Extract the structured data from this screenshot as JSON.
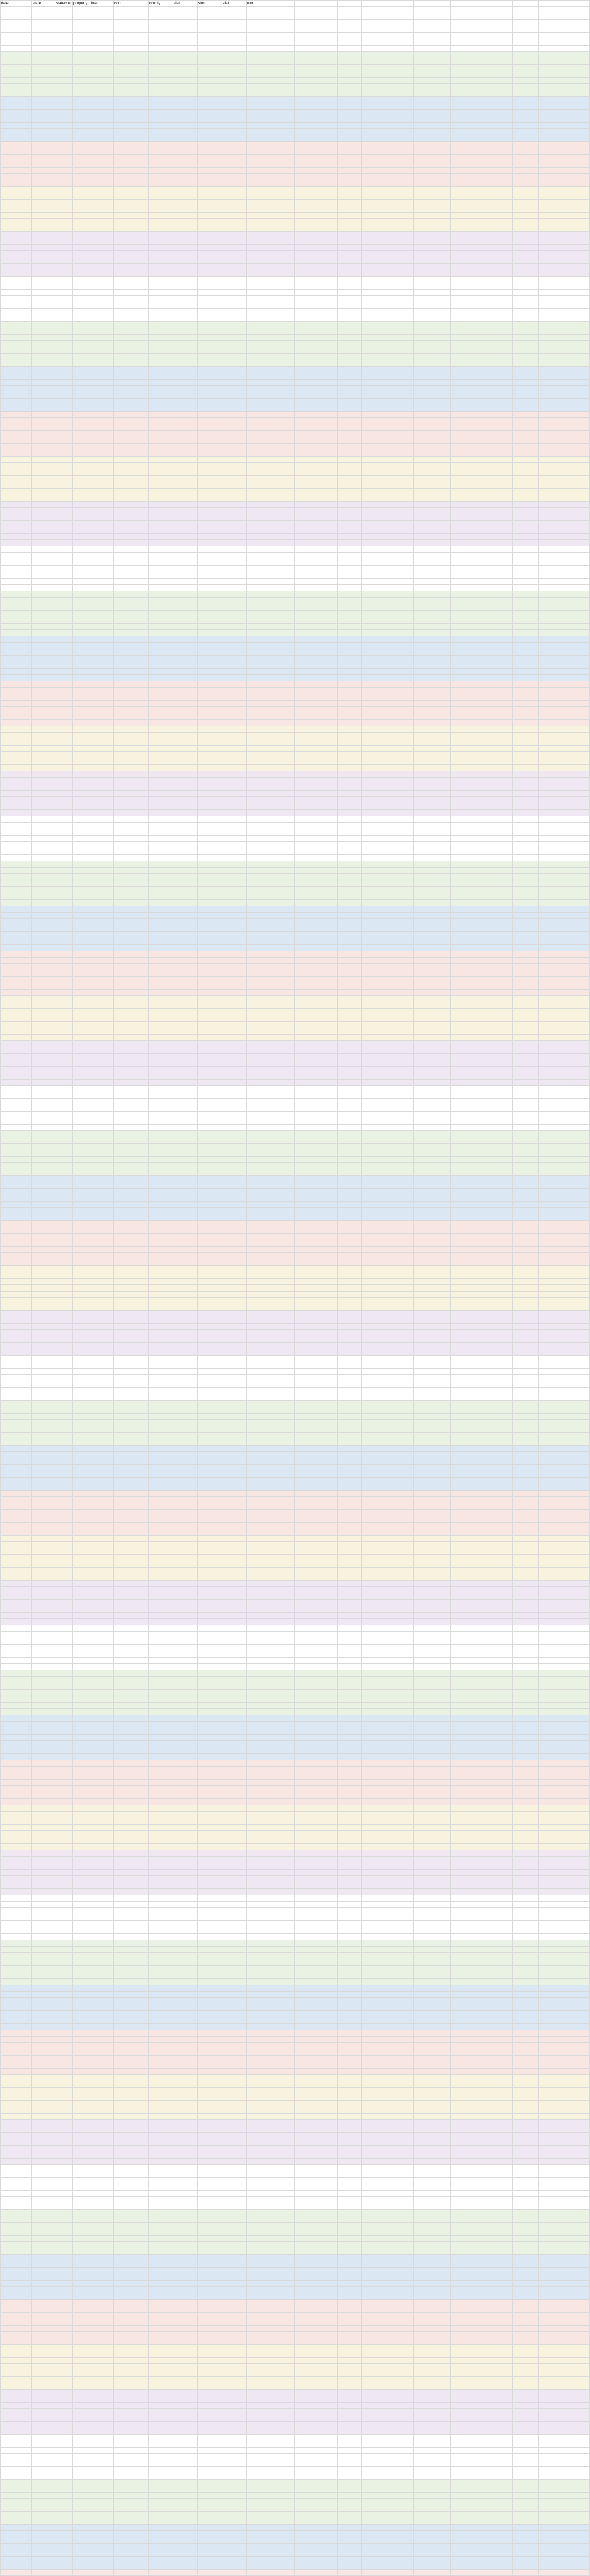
{
  "headers_left": [
    "date",
    "state",
    "statecount",
    "property",
    "loss",
    "coun",
    "county",
    "slat",
    "slon",
    "elat",
    "elon"
  ],
  "headers_right": [
    "",
    "",
    "",
    "",
    "",
    "",
    "",
    "",
    "",
    "",
    ""
  ],
  "band_colors": [
    "#ffffff",
    "#eaf2e4",
    "#dbe8f4",
    "#f8e6e3",
    "#f7f3df",
    "#efe7f1"
  ],
  "rows": 400
}
